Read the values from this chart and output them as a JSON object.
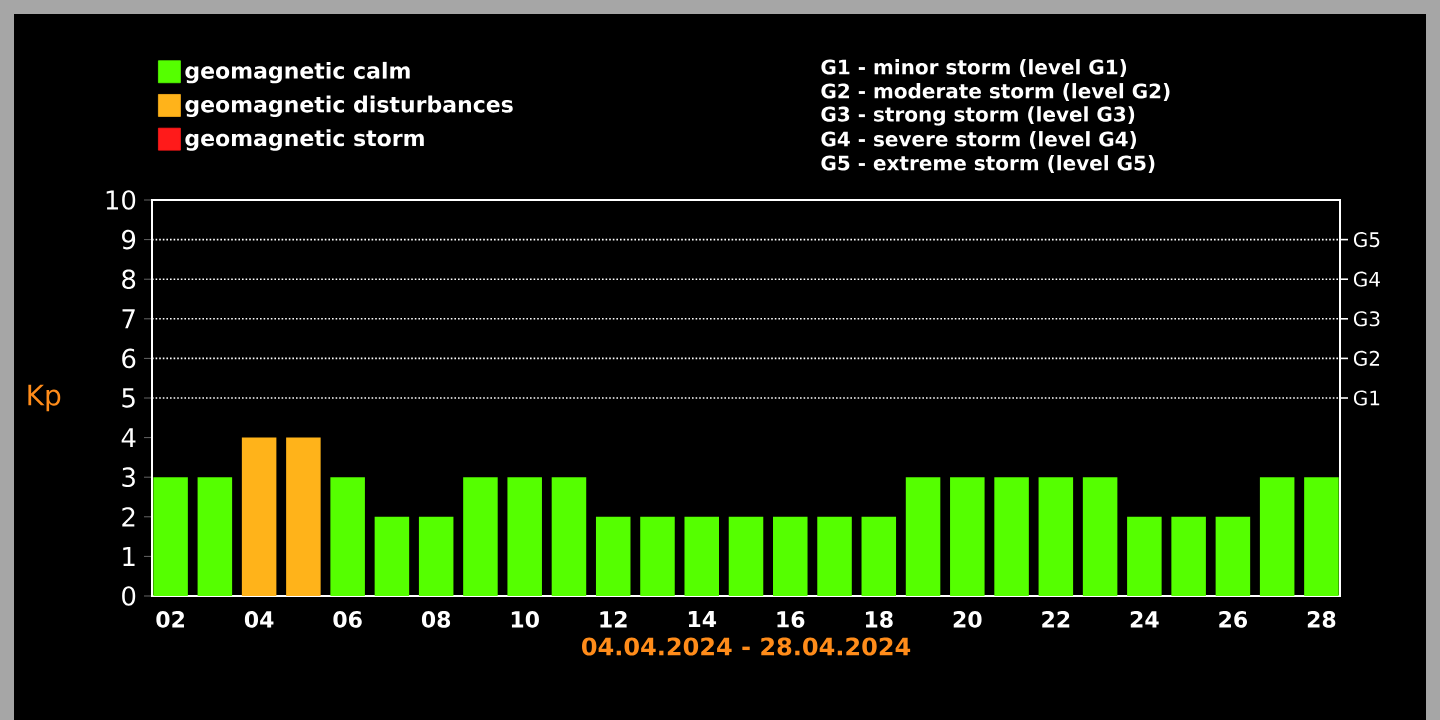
{
  "chart_data": {
    "type": "bar",
    "stacked": true,
    "xlabel": "04.04.2024 - 28.04.2024",
    "ylabel": "Kp",
    "categories": [
      "02",
      null,
      "04",
      null,
      "06",
      null,
      "08",
      null,
      "10",
      null,
      "12",
      null,
      "14",
      null,
      "16",
      null,
      "18",
      null,
      "20",
      null,
      "22",
      null,
      "24",
      null,
      "26",
      null,
      "28"
    ],
    "series": [
      {
        "name": "geomagnetic calm",
        "color": "#55ff00",
        "values": [
          3,
          3,
          null,
          null,
          3,
          2,
          2,
          3,
          3,
          3,
          2,
          2,
          2,
          2,
          2,
          2,
          2,
          3,
          3,
          3,
          3,
          3,
          2,
          2,
          2,
          3,
          3
        ]
      },
      {
        "name": "geomagnetic disturbances",
        "color": "#ffb31a",
        "values": [
          null,
          null,
          4,
          4,
          null,
          null,
          null,
          null,
          null,
          null,
          null,
          null,
          null,
          null,
          null,
          null,
          null,
          null,
          null,
          null,
          null,
          null,
          null,
          null,
          null,
          null,
          null
        ]
      },
      {
        "name": "geomagnetic storm",
        "color": "#ff1a1a",
        "values": [
          null,
          null,
          null,
          null,
          null,
          null,
          null,
          null,
          null,
          null,
          null,
          null,
          null,
          null,
          null,
          null,
          null,
          null,
          null,
          null,
          null,
          null,
          null,
          null,
          null,
          null,
          null
        ]
      }
    ],
    "ylim": [
      0,
      10
    ],
    "yticks": [
      0,
      1,
      2,
      3,
      4,
      5,
      6,
      7,
      8,
      9,
      10
    ],
    "ref_lines": [
      {
        "axis": "y",
        "value": 5,
        "label": "G1",
        "line_style": "dotted"
      },
      {
        "axis": "y",
        "value": 6,
        "label": "G2",
        "line_style": "dotted"
      },
      {
        "axis": "y",
        "value": 7,
        "label": "G3",
        "line_style": "dotted"
      },
      {
        "axis": "y",
        "value": 8,
        "label": "G4",
        "line_style": "dotted"
      },
      {
        "axis": "y",
        "value": 9,
        "label": "G5",
        "line_style": "dotted"
      }
    ],
    "legend": "top left",
    "annotations": [
      "G1 - minor storm (level G1)",
      "G2 - moderate storm (level G2)",
      "G3 - strong storm (level G3)",
      "G4 - severe storm (level G4)",
      "G5 - extreme storm (level G5)"
    ]
  }
}
